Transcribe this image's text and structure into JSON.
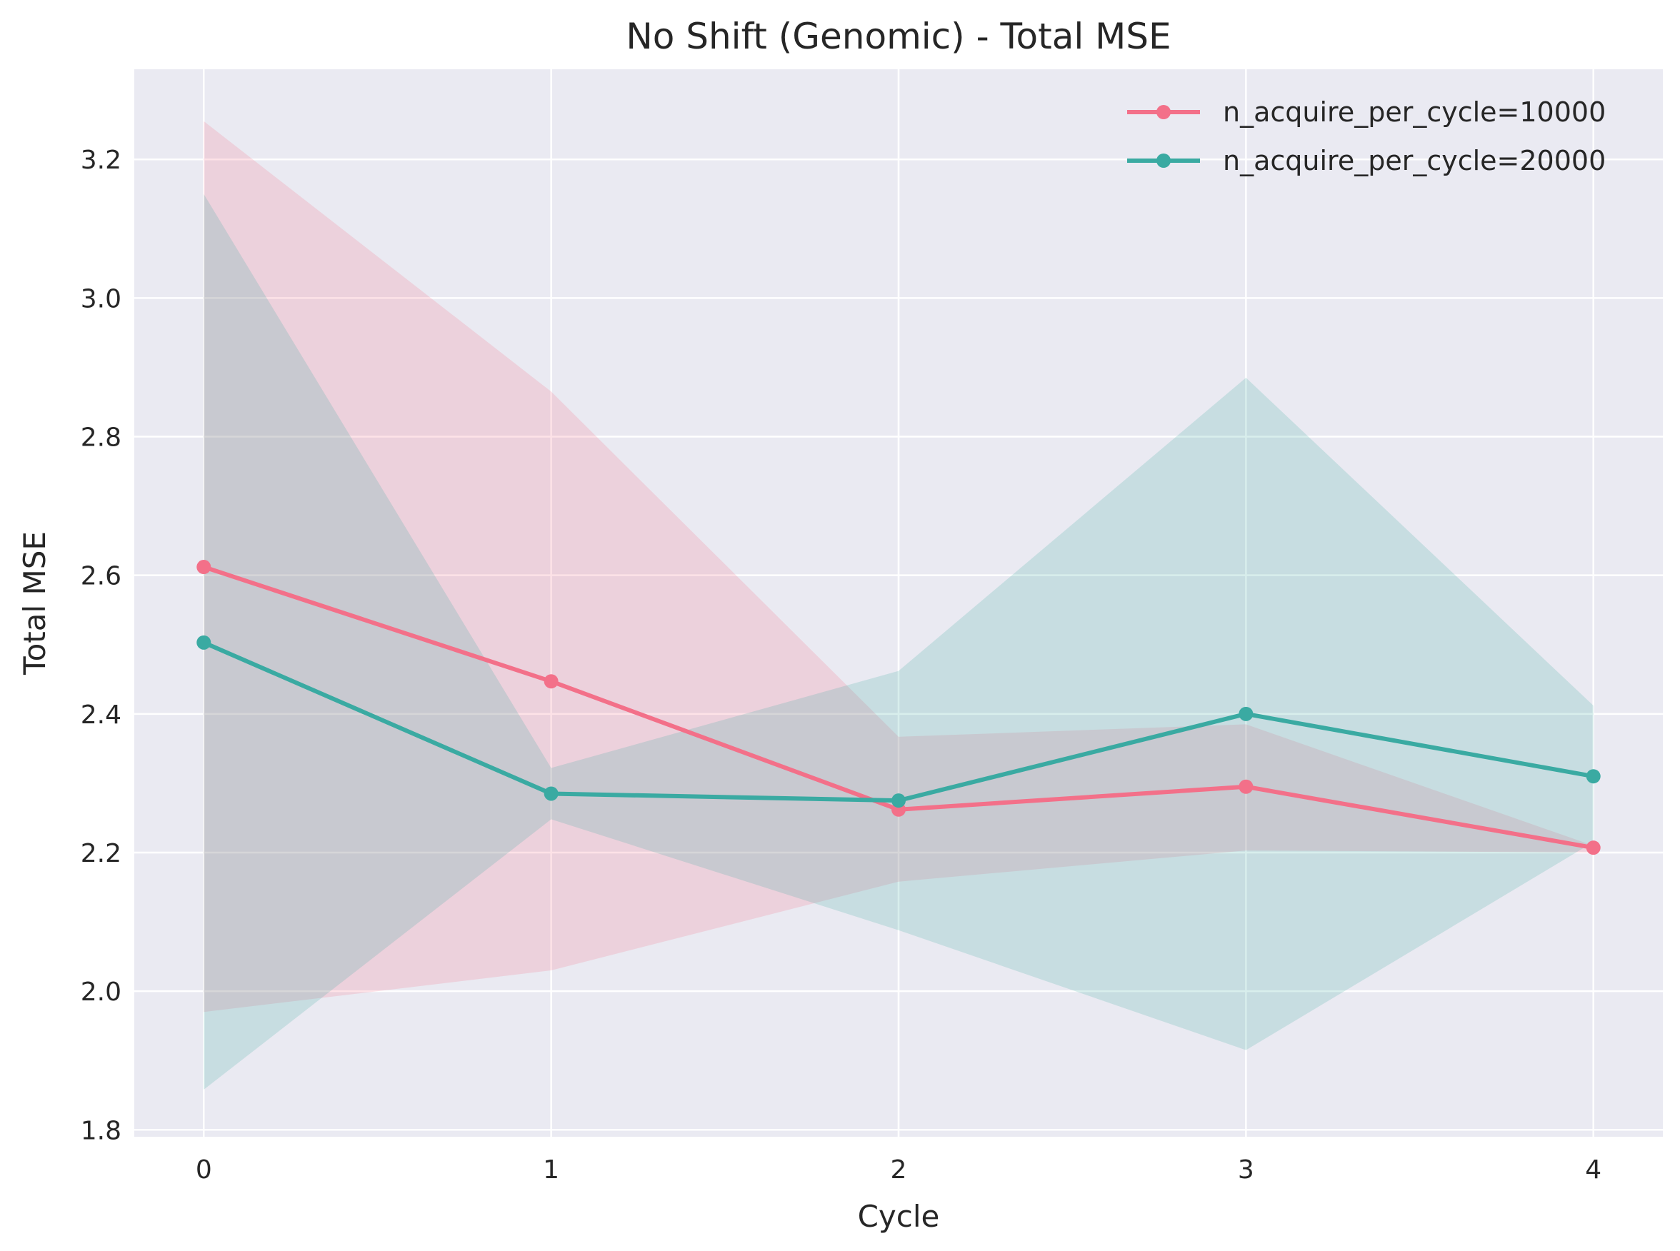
{
  "chart_data": {
    "type": "line",
    "title": "No Shift (Genomic) - Total MSE",
    "xlabel": "Cycle",
    "ylabel": "Total MSE",
    "x": [
      0,
      1,
      2,
      3,
      4
    ],
    "xlim": [
      -0.2,
      4.2
    ],
    "ylim": [
      1.79,
      3.33
    ],
    "yticks": [
      1.8,
      2.0,
      2.2,
      2.4,
      2.6,
      2.8,
      3.0,
      3.2
    ],
    "xticks": [
      0,
      1,
      2,
      3,
      4
    ],
    "grid": true,
    "legend_position": "top-right",
    "background_color": "#EAEAF2",
    "series": [
      {
        "name": "n_acquire_per_cycle=10000",
        "color": "#F37089",
        "values": [
          2.612,
          2.447,
          2.262,
          2.295,
          2.207
        ],
        "upper": [
          3.255,
          2.865,
          2.367,
          2.385,
          2.21
        ],
        "lower": [
          1.97,
          2.03,
          2.158,
          2.203,
          2.2
        ]
      },
      {
        "name": "n_acquire_per_cycle=20000",
        "color": "#3AAAA2",
        "values": [
          2.503,
          2.285,
          2.275,
          2.4,
          2.31
        ],
        "upper": [
          3.15,
          2.322,
          2.462,
          2.885,
          2.412
        ],
        "lower": [
          1.858,
          2.248,
          2.088,
          1.915,
          2.215
        ]
      }
    ]
  }
}
